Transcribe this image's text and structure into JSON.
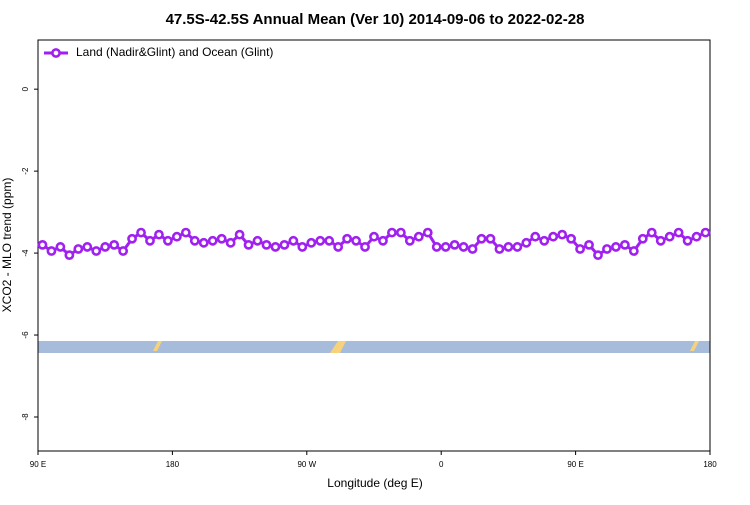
{
  "chart_data": {
    "type": "line",
    "title": "47.5S-42.5S Annual Mean (Ver 10)   2014-09-06 to 2022-02-28",
    "x_label": "Longitude (deg E)",
    "y_label": "XCO2 - MLO trend (ppm)",
    "xlim": [
      90,
      540
    ],
    "ylim": [
      -8.83,
      1.2
    ],
    "xticks": [
      {
        "value": 90,
        "label": "90 E"
      },
      {
        "value": 180,
        "label": "180"
      },
      {
        "value": 270,
        "label": "90 W"
      },
      {
        "value": 360,
        "label": "0"
      },
      {
        "value": 450,
        "label": "90 E"
      },
      {
        "value": 540,
        "label": "180"
      }
    ],
    "yticks": [
      0,
      -2,
      -4,
      -6,
      -8
    ],
    "legend": "top-left",
    "x": [
      93,
      99,
      105,
      111,
      117,
      123,
      129,
      135,
      141,
      147,
      153,
      159,
      165,
      171,
      177,
      183,
      189,
      195,
      201,
      207,
      213,
      219,
      225,
      231,
      237,
      243,
      249,
      255,
      261,
      267,
      273,
      279,
      285,
      291,
      297,
      303,
      309,
      315,
      321,
      327,
      333,
      339,
      345,
      351,
      357,
      363,
      369,
      375,
      381,
      387,
      393,
      399,
      405,
      411,
      417,
      423,
      429,
      435,
      441,
      447,
      453,
      459,
      465,
      471,
      477,
      483,
      489,
      495,
      501,
      507,
      513,
      519,
      525,
      531,
      537
    ],
    "series": [
      {
        "name": "Land (Nadir&Glint) and Ocean (Glint)",
        "color": "#a020f0",
        "values": [
          -3.8,
          -3.95,
          -3.85,
          -4.05,
          -3.9,
          -3.85,
          -3.95,
          -3.85,
          -3.8,
          -3.95,
          -3.65,
          -3.5,
          -3.7,
          -3.55,
          -3.7,
          -3.6,
          -3.5,
          -3.7,
          -3.75,
          -3.7,
          -3.65,
          -3.75,
          -3.55,
          -3.8,
          -3.7,
          -3.8,
          -3.85,
          -3.8,
          -3.7,
          -3.85,
          -3.75,
          -3.7,
          -3.7,
          -3.85,
          -3.65,
          -3.7,
          -3.85,
          -3.6,
          -3.7,
          -3.5,
          -3.5,
          -3.7,
          -3.6,
          -3.5,
          -3.85,
          -3.85,
          -3.8,
          -3.85,
          -3.9,
          -3.65,
          -3.65,
          -3.9,
          -3.85,
          -3.85,
          -3.75,
          -3.6,
          -3.7,
          -3.6,
          -3.55,
          -3.65,
          -3.9,
          -3.8,
          -4.05,
          -3.9,
          -3.85,
          -3.8,
          -3.95,
          -3.65,
          -3.5,
          -3.7,
          -3.6,
          -3.5,
          -3.7,
          -3.6,
          -3.5
        ]
      }
    ]
  }
}
